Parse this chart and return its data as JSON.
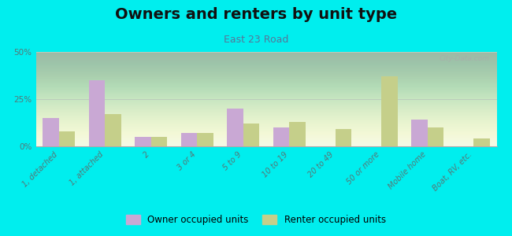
{
  "title": "Owners and renters by unit type",
  "subtitle": "East 23 Road",
  "categories": [
    "1, detached",
    "1, attached",
    "2",
    "3 or 4",
    "5 to 9",
    "10 to 19",
    "20 to 49",
    "50 or more",
    "Mobile home",
    "Boat, RV, etc."
  ],
  "owner_values": [
    15,
    35,
    5,
    7,
    20,
    10,
    0,
    0,
    14,
    0
  ],
  "renter_values": [
    8,
    17,
    5,
    7,
    12,
    13,
    9,
    37,
    10,
    4
  ],
  "owner_color": "#c9a8d4",
  "renter_color": "#c5cf8a",
  "background_color": "#00eeee",
  "ylim": [
    0,
    50
  ],
  "yticks": [
    0,
    25,
    50
  ],
  "ytick_labels": [
    "0%",
    "25%",
    "50%"
  ],
  "bar_width": 0.35,
  "title_fontsize": 14,
  "subtitle_fontsize": 9,
  "tick_fontsize": 7,
  "legend_fontsize": 8.5,
  "watermark": "City-Data.com",
  "grad_top_color": "#d6e8b0",
  "grad_bottom_color": "#f0f5e8"
}
